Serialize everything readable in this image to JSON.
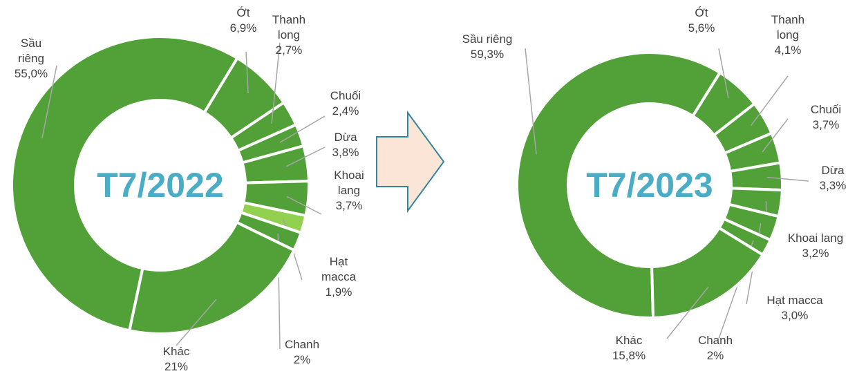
{
  "chart_data": [
    {
      "type": "pie",
      "title": "T7/2022",
      "categories": [
        "Sầu riêng",
        "Ớt",
        "Thanh long",
        "Chuối",
        "Dừa",
        "Khoai lang",
        "Hạt macca",
        "Chanh",
        "Khác"
      ],
      "values": [
        55.0,
        6.9,
        2.7,
        2.4,
        3.8,
        3.7,
        1.9,
        2,
        21
      ],
      "value_labels": [
        "55,0%",
        "6,9%",
        "2,7%",
        "2,4%",
        "3,8%",
        "3,7%",
        "1,9%",
        "2%",
        "21%"
      ],
      "colors": [
        "#52a038",
        "#52a038",
        "#52a038",
        "#52a038",
        "#52a038",
        "#52a038",
        "#92d050",
        "#52a038",
        "#52a038"
      ]
    },
    {
      "type": "pie",
      "title": "T7/2023",
      "categories": [
        "Sầu riêng",
        "Ớt",
        "Thanh long",
        "Chuối",
        "Dừa",
        "Khoai lang",
        "Hạt macca",
        "Chanh",
        "Khác"
      ],
      "values": [
        59.3,
        5.6,
        4.1,
        3.7,
        3.3,
        3.2,
        3.0,
        2,
        15.8
      ],
      "value_labels": [
        "59,3%",
        "5,6%",
        "4,1%",
        "3,7%",
        "3,3%",
        "3,2%",
        "3,0%",
        "2%",
        "15,8%"
      ],
      "colors": [
        "#52a038",
        "#52a038",
        "#52a038",
        "#52a038",
        "#52a038",
        "#52a038",
        "#52a038",
        "#52a038",
        "#52a038"
      ]
    }
  ]
}
